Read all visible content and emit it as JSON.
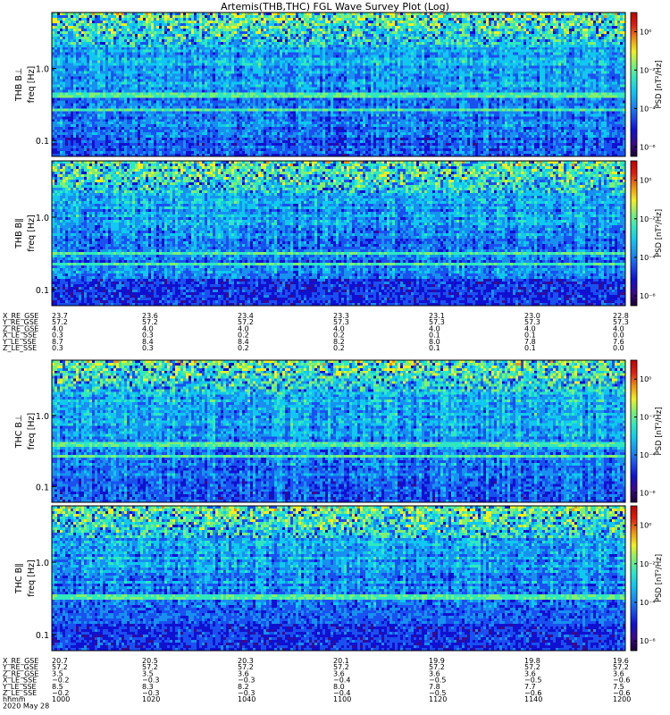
{
  "chart_data": {
    "type": "heatmap",
    "title": "Artemis(THB,THC) FGL Wave Survey Plot (Log)",
    "panels": [
      {
        "probe": "THB",
        "component": "B⊥",
        "ylabel": "freq [Hz]",
        "yticks": [
          "1.0",
          "0.1"
        ],
        "yscale": "log",
        "ylim": [
          0.06,
          6.0
        ],
        "colorbar": {
          "label": "PSD [nT²/Hz]",
          "ticks": [
            "10⁰",
            "10⁻²",
            "10⁻⁴",
            "10⁻⁶"
          ],
          "scale": "log",
          "range": [
            -6.5,
            1
          ]
        }
      },
      {
        "probe": "THB",
        "component": "B∥",
        "ylabel": "freq [Hz]",
        "yticks": [
          "1.0",
          "0.1"
        ],
        "yscale": "log",
        "ylim": [
          0.06,
          6.0
        ],
        "colorbar": {
          "label": "PSD [nT²/Hz]",
          "ticks": [
            "10⁰",
            "10⁻²",
            "10⁻⁴",
            "10⁻⁶"
          ],
          "scale": "log",
          "range": [
            -6.5,
            1
          ]
        }
      },
      {
        "probe": "THC",
        "component": "B⊥",
        "ylabel": "freq [Hz]",
        "yticks": [
          "1.0",
          "0.1"
        ],
        "yscale": "log",
        "ylim": [
          0.06,
          6.0
        ],
        "colorbar": {
          "label": "PSD [nT²/Hz]",
          "ticks": [
            "10⁰",
            "10⁻²",
            "10⁻⁴",
            "10⁻⁶"
          ],
          "scale": "log",
          "range": [
            -6.5,
            1
          ]
        }
      },
      {
        "probe": "THC",
        "component": "B∥",
        "ylabel": "freq [Hz]",
        "yticks": [
          "1.0",
          "0.1"
        ],
        "yscale": "log",
        "ylim": [
          0.06,
          6.0
        ],
        "colorbar": {
          "label": "PSD [nT²/Hz]",
          "ticks": [
            "10⁰",
            "10⁻²",
            "10⁻⁴",
            "10⁻⁶"
          ],
          "scale": "log",
          "range": [
            -6.5,
            1
          ]
        }
      }
    ],
    "ephemeris_blocks": [
      {
        "probe": "THB",
        "labels": [
          "X_RE_GSE",
          "Y_RE_GSE",
          "Z_RE_GSE",
          "X_LE_SSE",
          "Y_LE_SSE",
          "Z_LE_SSE"
        ],
        "columns": [
          [
            "23.7",
            "57.2",
            "4.0",
            "0.3",
            "8.7",
            "0.3"
          ],
          [
            "23.6",
            "57.2",
            "4.0",
            "0.3",
            "8.4",
            "0.3"
          ],
          [
            "23.4",
            "57.2",
            "4.0",
            "0.2",
            "8.4",
            "0.2"
          ],
          [
            "23.3",
            "57.3",
            "4.0",
            "0.2",
            "8.2",
            "0.2"
          ],
          [
            "23.1",
            "57.3",
            "4.0",
            "0.1",
            "8.0",
            "0.1"
          ],
          [
            "23.0",
            "57.3",
            "4.0",
            "0.1",
            "7.8",
            "0.1"
          ],
          [
            "22.8",
            "57.3",
            "4.0",
            "0.0",
            "7.6",
            "0.0"
          ]
        ]
      },
      {
        "probe": "THC",
        "labels": [
          "X_RE_GSE",
          "Y_RE_GSE",
          "Z_RE_GSE",
          "X_LE_SSE",
          "Y_LE_SSE",
          "Z_LE_SSE",
          "hhmm",
          "2020 May 28"
        ],
        "columns": [
          [
            "20.7",
            "57.2",
            "3.5",
            "−0.2",
            "8.5",
            "−0.2",
            "1000"
          ],
          [
            "20.5",
            "57.2",
            "3.5",
            "−0.3",
            "8.3",
            "−0.3",
            "1020"
          ],
          [
            "20.3",
            "57.2",
            "3.6",
            "−0.3",
            "8.2",
            "−0.3",
            "1040"
          ],
          [
            "20.1",
            "57.2",
            "3.6",
            "−0.4",
            "8.0",
            "−0.4",
            "1100"
          ],
          [
            "19.9",
            "57.2",
            "3.6",
            "−0.5",
            "7.8",
            "−0.5",
            "1120"
          ],
          [
            "19.8",
            "57.2",
            "3.6",
            "−0.5",
            "7.7",
            "−0.6",
            "1140"
          ],
          [
            "19.6",
            "57.2",
            "3.6",
            "−0.6",
            "7.5",
            "−0.6",
            "1200"
          ]
        ]
      }
    ],
    "x": {
      "label": "hhmm",
      "date": "2020 May 28",
      "ticks": [
        "1000",
        "1020",
        "1040",
        "1100",
        "1120",
        "1140",
        "1200"
      ]
    },
    "colormap": [
      "#1a0033",
      "#3a0a8c",
      "#1010d0",
      "#1a50f0",
      "#1890f0",
      "#10c8f0",
      "#30e8c0",
      "#80f070",
      "#f0f020",
      "#f09010",
      "#e02010",
      "#c00000"
    ],
    "grid": false,
    "legend": "none"
  }
}
